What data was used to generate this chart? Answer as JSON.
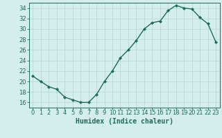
{
  "x": [
    0,
    1,
    2,
    3,
    4,
    5,
    6,
    7,
    8,
    9,
    10,
    11,
    12,
    13,
    14,
    15,
    16,
    17,
    18,
    19,
    20,
    21,
    22,
    23
  ],
  "y": [
    21,
    20,
    19,
    18.5,
    17,
    16.5,
    16,
    16,
    17.5,
    20,
    22,
    24.5,
    26,
    27.8,
    30,
    31.2,
    31.5,
    33.5,
    34.5,
    34,
    33.8,
    32.2,
    31,
    27.5
  ],
  "xlabel": "Humidex (Indice chaleur)",
  "ylabel": "",
  "ylim": [
    15,
    35
  ],
  "xlim": [
    -0.5,
    23.5
  ],
  "yticks": [
    16,
    18,
    20,
    22,
    24,
    26,
    28,
    30,
    32,
    34
  ],
  "xticks": [
    0,
    1,
    2,
    3,
    4,
    5,
    6,
    7,
    8,
    9,
    10,
    11,
    12,
    13,
    14,
    15,
    16,
    17,
    18,
    19,
    20,
    21,
    22,
    23
  ],
  "line_color": "#1a6b5a",
  "marker_color": "#1a6b5a",
  "bg_color": "#d4eeee",
  "grid_color": "#b8d8d8",
  "axis_color": "#1a6b5a",
  "label_fontsize": 7.0,
  "tick_fontsize": 6.0
}
